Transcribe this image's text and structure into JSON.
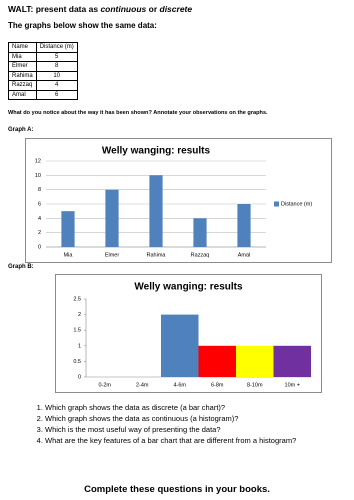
{
  "walt": {
    "prefix": "WALT: present data as",
    "term1": "continuous",
    "joiner": "or",
    "term2": "discrete"
  },
  "subheading": "The graphs below show the same data:",
  "table": {
    "header": [
      "Name",
      "Distance (m)"
    ],
    "rows": [
      [
        "Mia",
        5
      ],
      [
        "Elmer",
        8
      ],
      [
        "Rahima",
        10
      ],
      [
        "Razzaq",
        4
      ],
      [
        "Amal",
        6
      ]
    ]
  },
  "instruction": "What do you notice about the way it has been shown? Annotate your observations on the graphs.",
  "graph_labels": [
    "Graph A:",
    "Graph B:"
  ],
  "chart_data": [
    {
      "type": "bar",
      "title": "Welly wanging: results",
      "categories": [
        "Mia",
        "Elmer",
        "Rahima",
        "Razzaq",
        "Amal"
      ],
      "series": [
        {
          "name": "Distance (m)",
          "color": "#4f81bd",
          "values": [
            5,
            8,
            10,
            4,
            6
          ]
        }
      ],
      "ylim": [
        0,
        12
      ],
      "yticks": [
        0,
        2,
        4,
        6,
        8,
        10,
        12
      ],
      "grid": true,
      "legend": "right"
    },
    {
      "type": "histogram",
      "title": "Welly wanging: results",
      "categories": [
        "0-2m",
        "2-4m",
        "4-6m",
        "6-8m",
        "8-10m",
        "10m +"
      ],
      "values": [
        0,
        0,
        2,
        1,
        1,
        1
      ],
      "colors": [
        "#4f81bd",
        "#4f81bd",
        "#4f81bd",
        "#ff0000",
        "#ffff00",
        "#7030a0"
      ],
      "ylim": [
        0,
        2.5
      ],
      "yticks": [
        0,
        0.5,
        1,
        1.5,
        2,
        2.5
      ],
      "grid": false
    }
  ],
  "questions": [
    "Which graph shows the data as discrete (a bar chart)?",
    "Which graph shows the data as continuous (a histogram)?",
    "Which is the most useful way of presenting the data?",
    "What are the key features of a bar chart that are different from a histogram?"
  ],
  "footer": "Complete these questions in your books."
}
